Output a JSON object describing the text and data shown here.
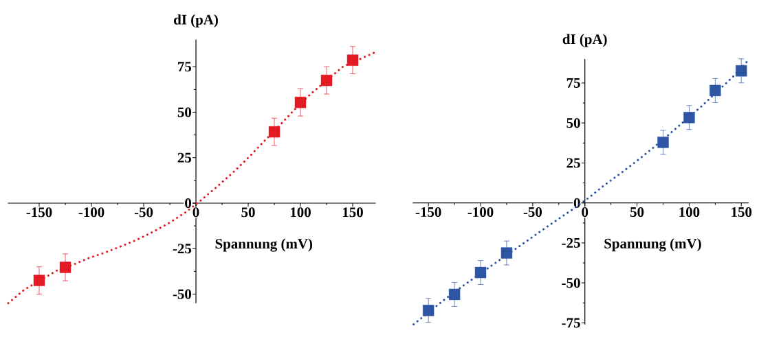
{
  "chart_data": [
    {
      "type": "scatter",
      "ylabel": "dI (pA)",
      "xlabel": "Spannung (mV)",
      "xlim": [
        -180,
        172
      ],
      "ylim": [
        -55,
        90
      ],
      "xticks": [
        -150,
        -100,
        -50,
        0,
        50,
        100,
        150
      ],
      "yticks": [
        -50,
        -25,
        0,
        25,
        50,
        75
      ],
      "series": [
        {
          "color": "#e31a23",
          "marker": "square",
          "x": [
            -150,
            -125,
            75,
            100,
            125,
            150
          ],
          "values": [
            -42.5,
            -35.3,
            39.2,
            55.4,
            67.5,
            78.6
          ],
          "errors": [
            7.5,
            7.4,
            7.5,
            7.5,
            7.5,
            7.5
          ]
        },
        {
          "type": "line",
          "color": "#e31a23",
          "marker": "none",
          "line_style": "dotted",
          "x": [
            -179.6,
            -164.3,
            -133.3,
            -118.1,
            -103.1,
            -87.3,
            -72.3,
            -56.8,
            -41.5,
            -26.3,
            -10.8,
            4.2,
            19.7,
            35.2,
            50.5,
            65.3,
            79.8,
            95.1,
            109.9,
            140.8,
            171.4
          ],
          "values": [
            -55.0,
            -47.6,
            -37.1,
            -34.0,
            -30.3,
            -27.2,
            -23.9,
            -20.2,
            -15.9,
            -11.1,
            -5.4,
            1.3,
            8.8,
            16.7,
            25.2,
            34.1,
            42.6,
            51.9,
            60.1,
            75.1,
            82.9
          ]
        }
      ]
    },
    {
      "type": "scatter",
      "ylabel": "dI (pA)",
      "xlabel": "Spannung (mV)",
      "xlim": [
        -165,
        157
      ],
      "ylim": [
        -76,
        90
      ],
      "xticks": [
        -150,
        -100,
        -50,
        0,
        50,
        100,
        150
      ],
      "yticks": [
        -75,
        -50,
        -25,
        0,
        25,
        50,
        75
      ],
      "series": [
        {
          "color": "#2e55a4",
          "marker": "square",
          "x": [
            -150,
            -125,
            -100,
            -75,
            75,
            100,
            125,
            150
          ],
          "values": [
            -67.2,
            -57.2,
            -43.5,
            -31.3,
            37.9,
            53.4,
            70.3,
            82.6
          ],
          "errors": [
            7.5,
            7.5,
            7.5,
            7.5,
            7.5,
            7.5,
            7.5,
            7.5
          ]
        },
        {
          "type": "line",
          "color": "#2e55a4",
          "marker": "none",
          "line_style": "dotted",
          "x": [
            -164.2,
            -133.4,
            -118.0,
            -87.3,
            -56.9,
            -41.8,
            -26.4,
            -11.0,
            4.4,
            19.3,
            34.7,
            50.1,
            65.5,
            80.9,
            111.6,
            142.0,
            156.0
          ],
          "values": [
            -75.9,
            -59.8,
            -52.4,
            -38.2,
            -24.4,
            -17.4,
            -10.5,
            -3.7,
            3.6,
            11.4,
            18.7,
            26.4,
            34.5,
            43.0,
            60.3,
            78.9,
            88.7
          ]
        }
      ]
    }
  ]
}
